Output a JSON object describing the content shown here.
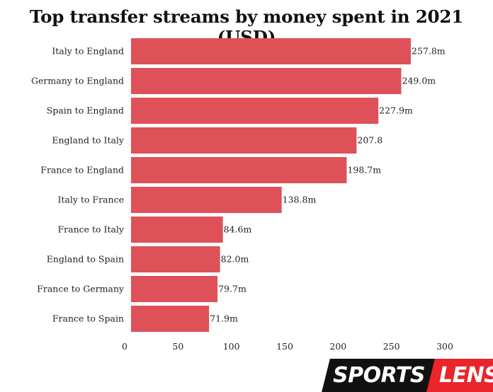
{
  "chart_data": {
    "type": "bar",
    "orientation": "horizontal",
    "title": "Top transfer streams by money spent in 2021 (USD)",
    "categories": [
      "Italy to England",
      "Germany to England",
      "Spain to England",
      "England to Italy",
      "France to England",
      "Italy to France",
      "France to Italy",
      "England to Spain",
      "France to Germany",
      "France to Spain"
    ],
    "values": [
      257.8,
      249.0,
      227.9,
      207.8,
      198.7,
      138.8,
      84.6,
      82.0,
      79.7,
      71.9
    ],
    "value_labels": [
      "257.8m",
      "249.0m",
      "227.9m",
      "207.8",
      "198.7m",
      "138.8m",
      "84.6m",
      "82.0m",
      "79.7m",
      "71.9m"
    ],
    "xticks": [
      0,
      50,
      100,
      150,
      200,
      250,
      300
    ],
    "xlim": [
      0,
      300
    ],
    "bar_color": "#de5159",
    "grid": false,
    "legend": "none"
  },
  "logo": {
    "part1": "SPORTS",
    "part2": "LENS",
    "color_dark": "#111111",
    "color_accent": "#e8262c"
  }
}
